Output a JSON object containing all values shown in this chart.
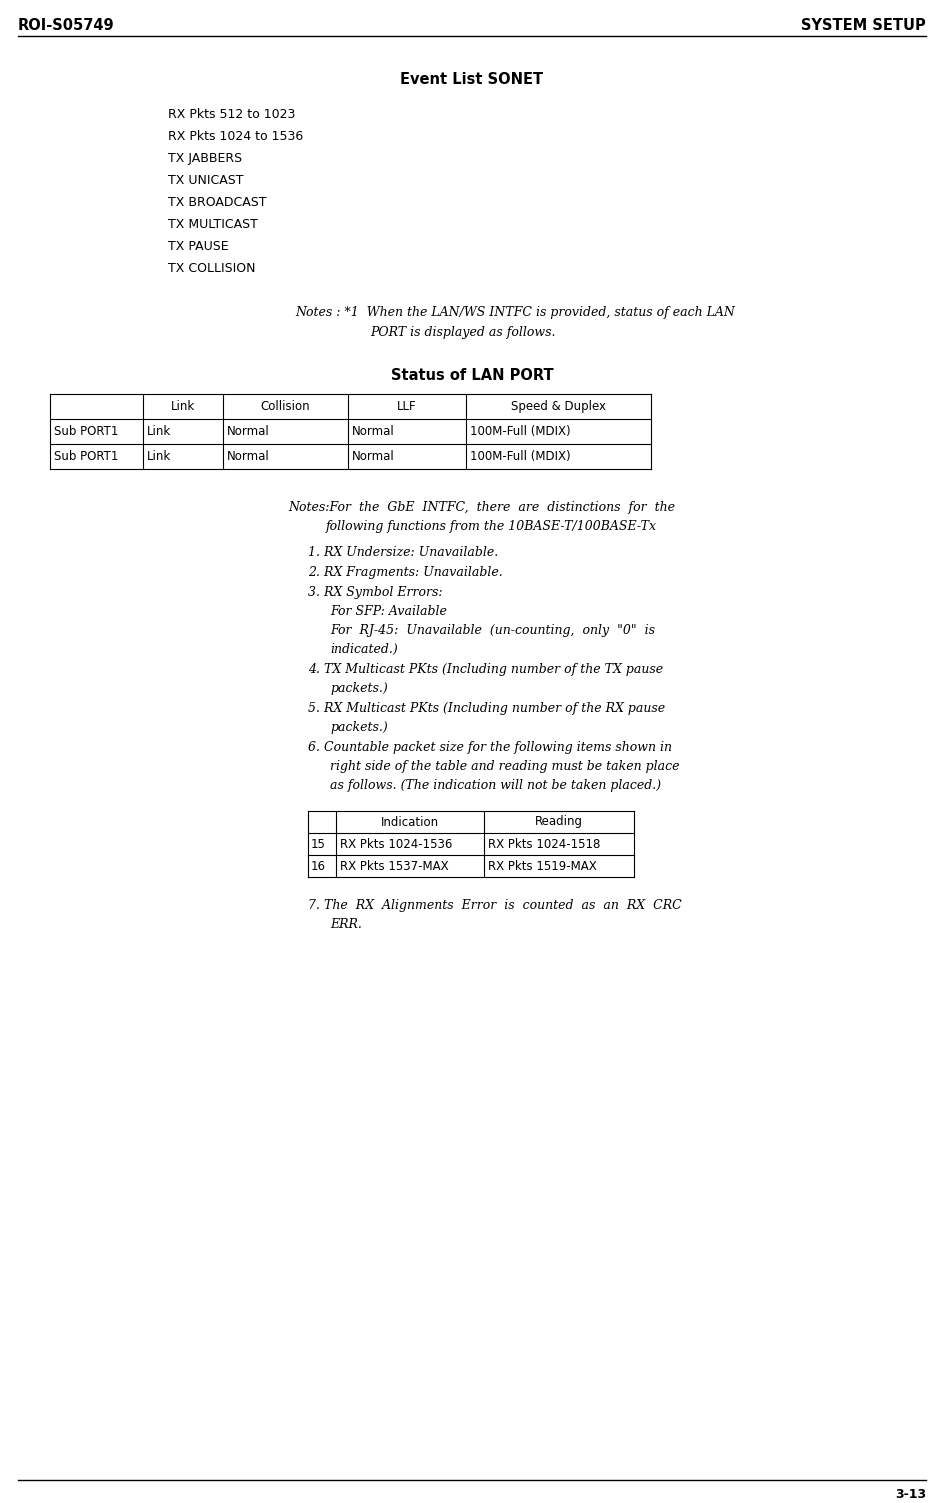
{
  "header_left": "ROI-S05749",
  "header_right": "SYSTEM SETUP",
  "footer_right": "3-13",
  "section_title": "Event List SONET",
  "event_list_items": [
    "RX Pkts 512 to 1023",
    "RX Pkts 1024 to 1536",
    "TX JABBERS",
    "TX UNICAST",
    "TX BROADCAST",
    "TX MULTICAST",
    "TX PAUSE",
    "TX COLLISION"
  ],
  "lan_port_title": "Status of LAN PORT",
  "lan_port_headers": [
    "",
    "Link",
    "Collision",
    "LLF",
    "Speed & Duplex"
  ],
  "lan_port_rows": [
    [
      "Sub PORT1",
      "Link",
      "Normal",
      "Normal",
      "100M-Full (MDIX)"
    ],
    [
      "Sub PORT1",
      "Link",
      "Normal",
      "Normal",
      "100M-Full (MDIX)"
    ]
  ],
  "indication_table_rows": [
    [
      "15",
      "RX Pkts 1024-1536",
      "RX Pkts 1024-1518"
    ],
    [
      "16",
      "RX Pkts 1537-MAX",
      "RX Pkts 1519-MAX"
    ]
  ],
  "bg_color": "#ffffff",
  "text_color": "#000000",
  "header_font_size": 10.5,
  "body_font_size": 9.0,
  "title_font_size": 10.5
}
